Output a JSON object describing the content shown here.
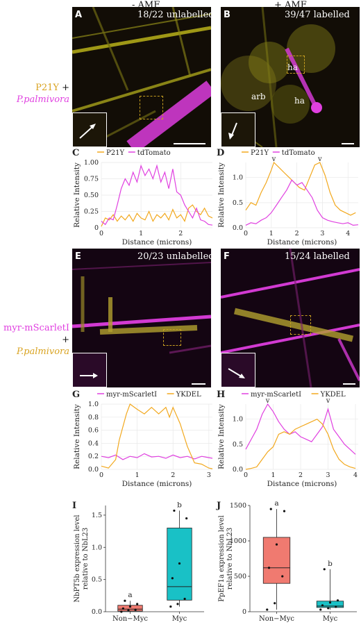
{
  "columns": {
    "minus": "- AMF",
    "plus": "+ AMF"
  },
  "row_labels": {
    "top": {
      "marker": "P21Y",
      "plus": "+",
      "pathogen": "P.palmivora"
    },
    "bottom": {
      "marker": "myr-mScarletI",
      "plus": "+",
      "pathogen": "P.palmivora"
    }
  },
  "panels": {
    "A": {
      "letter": "A",
      "count": "18/22 unlabelled"
    },
    "B": {
      "letter": "B",
      "count": "39/47 labelled",
      "labels": [
        "ha",
        "ha",
        "arb"
      ]
    },
    "C": {
      "letter": "C"
    },
    "D": {
      "letter": "D"
    },
    "E": {
      "letter": "E",
      "count": "20/23 unlabelled"
    },
    "F": {
      "letter": "F",
      "count": "15/24 labelled"
    },
    "G": {
      "letter": "G"
    },
    "H": {
      "letter": "H"
    },
    "I": {
      "letter": "I"
    },
    "J": {
      "letter": "J"
    }
  },
  "colors": {
    "yellow": "#f2a81d",
    "magenta": "#e040e0",
    "salmon": "#f07a70",
    "teal": "#19c1c6"
  },
  "chart_data": [
    {
      "id": "C",
      "type": "line",
      "legend": [
        "P21Y",
        "tdTomato"
      ],
      "xlabel": "Distance (microns)",
      "ylabel": "Relative Intensity",
      "xlim": [
        0,
        2.8
      ],
      "ylim": [
        0,
        1.0
      ],
      "xticks": [
        "0",
        "1",
        "2"
      ],
      "yticks": [
        "0",
        "0.25",
        "0.50",
        "0.75",
        "1.00"
      ],
      "series": [
        {
          "name": "P21Y",
          "color": "#f2a81d",
          "x": [
            0,
            0.1,
            0.2,
            0.3,
            0.4,
            0.5,
            0.6,
            0.7,
            0.8,
            0.9,
            1.0,
            1.1,
            1.2,
            1.3,
            1.4,
            1.5,
            1.6,
            1.7,
            1.8,
            1.9,
            2.0,
            2.1,
            2.2,
            2.3,
            2.4,
            2.5,
            2.6,
            2.7,
            2.8
          ],
          "y": [
            0.02,
            0.15,
            0.12,
            0.2,
            0.1,
            0.18,
            0.12,
            0.2,
            0.1,
            0.22,
            0.15,
            0.12,
            0.25,
            0.1,
            0.2,
            0.15,
            0.22,
            0.12,
            0.28,
            0.15,
            0.2,
            0.1,
            0.3,
            0.35,
            0.25,
            0.2,
            0.3,
            0.18,
            0.15
          ]
        },
        {
          "name": "tdTomato",
          "color": "#e040e0",
          "x": [
            0,
            0.1,
            0.2,
            0.3,
            0.4,
            0.5,
            0.6,
            0.7,
            0.8,
            0.9,
            1.0,
            1.1,
            1.2,
            1.3,
            1.4,
            1.5,
            1.6,
            1.7,
            1.8,
            1.9,
            2.0,
            2.1,
            2.2,
            2.3,
            2.4,
            2.5,
            2.6,
            2.7,
            2.8
          ],
          "y": [
            0.1,
            0.05,
            0.15,
            0.12,
            0.35,
            0.6,
            0.75,
            0.65,
            0.85,
            0.7,
            0.95,
            0.8,
            0.9,
            0.75,
            0.95,
            0.7,
            0.85,
            0.6,
            0.9,
            0.55,
            0.5,
            0.35,
            0.25,
            0.15,
            0.3,
            0.12,
            0.1,
            0.05,
            0.04
          ]
        }
      ]
    },
    {
      "id": "D",
      "type": "line",
      "legend": [
        "P21Y",
        "tdTomato"
      ],
      "xlabel": "Distance (microns)",
      "ylabel": "Relative Intensity",
      "xlim": [
        0,
        4.4
      ],
      "ylim": [
        0,
        1.3
      ],
      "xticks": [
        "0",
        "1",
        "2",
        "3",
        "4"
      ],
      "yticks": [
        "0.0",
        "0.5",
        "1.0"
      ],
      "markers": [
        {
          "x": 1.1,
          "text": "v"
        },
        {
          "x": 2.9,
          "text": "v"
        }
      ],
      "series": [
        {
          "name": "P21Y",
          "color": "#f2a81d",
          "x": [
            0,
            0.2,
            0.4,
            0.6,
            0.8,
            1.0,
            1.1,
            1.3,
            1.5,
            1.7,
            1.9,
            2.1,
            2.3,
            2.5,
            2.7,
            2.9,
            3.1,
            3.3,
            3.5,
            3.7,
            3.9,
            4.1,
            4.3
          ],
          "y": [
            0.35,
            0.5,
            0.45,
            0.7,
            0.9,
            1.15,
            1.3,
            1.2,
            1.1,
            1.0,
            0.9,
            0.8,
            0.75,
            1.0,
            1.25,
            1.3,
            1.05,
            0.7,
            0.45,
            0.35,
            0.3,
            0.25,
            0.3
          ]
        },
        {
          "name": "tdTomato",
          "color": "#e040e0",
          "x": [
            0,
            0.2,
            0.4,
            0.6,
            0.8,
            1.0,
            1.2,
            1.4,
            1.6,
            1.8,
            2.0,
            2.2,
            2.4,
            2.6,
            2.8,
            3.0,
            3.2,
            3.4,
            3.6,
            3.8,
            4.0,
            4.2,
            4.4
          ],
          "y": [
            0.05,
            0.1,
            0.08,
            0.15,
            0.2,
            0.3,
            0.45,
            0.6,
            0.75,
            0.95,
            0.85,
            0.9,
            0.75,
            0.6,
            0.35,
            0.2,
            0.15,
            0.12,
            0.1,
            0.08,
            0.1,
            0.05,
            0.06
          ]
        }
      ]
    },
    {
      "id": "G",
      "type": "line",
      "legend": [
        "myr-mScarletI",
        "YKDEL"
      ],
      "xlabel": "Distance (microns)",
      "ylabel": "Relative Intensity",
      "xlim": [
        0,
        3.1
      ],
      "ylim": [
        0,
        1.0
      ],
      "xticks": [
        "0",
        "1",
        "2",
        "3"
      ],
      "yticks": [
        "0.0",
        "0.2",
        "0.4",
        "0.6",
        "0.8",
        "1.0"
      ],
      "series": [
        {
          "name": "myr-mScarletI",
          "color": "#e040e0",
          "x": [
            0,
            0.2,
            0.4,
            0.6,
            0.8,
            1.0,
            1.2,
            1.4,
            1.6,
            1.8,
            2.0,
            2.2,
            2.4,
            2.6,
            2.8,
            3.0,
            3.1
          ],
          "y": [
            0.2,
            0.18,
            0.22,
            0.15,
            0.2,
            0.18,
            0.24,
            0.19,
            0.2,
            0.17,
            0.22,
            0.18,
            0.2,
            0.16,
            0.2,
            0.18,
            0.17
          ]
        },
        {
          "name": "YKDEL",
          "color": "#f2a81d",
          "x": [
            0,
            0.2,
            0.4,
            0.5,
            0.7,
            0.8,
            1.0,
            1.2,
            1.4,
            1.6,
            1.8,
            1.9,
            2.0,
            2.2,
            2.4,
            2.6,
            2.8,
            3.0,
            3.1
          ],
          "y": [
            0.05,
            0.02,
            0.15,
            0.45,
            0.85,
            1.0,
            0.92,
            0.85,
            0.95,
            0.85,
            0.95,
            0.8,
            0.95,
            0.7,
            0.35,
            0.1,
            0.08,
            0.02,
            0.01
          ]
        }
      ]
    },
    {
      "id": "H",
      "type": "line",
      "legend": [
        "myr-mScarletI",
        "YKDEL"
      ],
      "xlabel": "Distance (microns)",
      "ylabel": "Relative Intensity",
      "xlim": [
        0,
        4.1
      ],
      "ylim": [
        0,
        1.3
      ],
      "xticks": [
        "0",
        "1",
        "2",
        "3",
        "4"
      ],
      "yticks": [
        "0.0",
        "0.5",
        "1.0"
      ],
      "markers": [
        {
          "x": 0.8,
          "text": "v"
        },
        {
          "x": 3.0,
          "text": "v"
        }
      ],
      "series": [
        {
          "name": "myr-mScarletI",
          "color": "#e040e0",
          "x": [
            0,
            0.2,
            0.4,
            0.6,
            0.8,
            1.0,
            1.2,
            1.4,
            1.6,
            1.8,
            2.0,
            2.2,
            2.4,
            2.6,
            2.8,
            3.0,
            3.2,
            3.4,
            3.6,
            3.8,
            4.0
          ],
          "y": [
            0.4,
            0.6,
            0.8,
            1.1,
            1.3,
            1.15,
            0.95,
            0.8,
            0.7,
            0.75,
            0.65,
            0.6,
            0.55,
            0.7,
            0.85,
            1.2,
            0.8,
            0.65,
            0.5,
            0.4,
            0.3
          ]
        },
        {
          "name": "YKDEL",
          "color": "#f2a81d",
          "x": [
            0,
            0.2,
            0.4,
            0.6,
            0.8,
            1.0,
            1.2,
            1.4,
            1.6,
            1.8,
            2.0,
            2.2,
            2.4,
            2.6,
            2.8,
            3.0,
            3.2,
            3.4,
            3.6,
            3.8,
            4.0
          ],
          "y": [
            0.0,
            0.02,
            0.05,
            0.2,
            0.35,
            0.45,
            0.7,
            0.75,
            0.7,
            0.8,
            0.85,
            0.9,
            0.95,
            1.0,
            0.9,
            0.7,
            0.4,
            0.2,
            0.1,
            0.05,
            0.02
          ]
        }
      ]
    },
    {
      "id": "I",
      "type": "box",
      "ylabel": "NbPT5b expression level relative to NbL23",
      "categories": [
        "Non−Myc",
        "Myc"
      ],
      "ylim": [
        0,
        1.65
      ],
      "yticks": [
        "0.0",
        "0.5",
        "1.0",
        "1.5"
      ],
      "boxes": [
        {
          "q1": 0.01,
          "median": 0.04,
          "q3": 0.1,
          "min": 0.0,
          "max": 0.17,
          "color": "#f07a70",
          "letter": "a",
          "points": [
            0.0,
            0.02,
            0.03,
            0.05,
            0.08,
            0.12,
            0.17
          ]
        },
        {
          "q1": 0.18,
          "median": 0.39,
          "q3": 1.3,
          "min": 0.08,
          "max": 1.57,
          "color": "#19c1c6",
          "letter": "b",
          "points": [
            0.08,
            0.12,
            0.2,
            0.52,
            0.75,
            1.45,
            1.57
          ]
        }
      ]
    },
    {
      "id": "J",
      "type": "box",
      "ylabel": "PpEF1a expression level relative to NbL23",
      "categories": [
        "Non−Myc",
        "Myc"
      ],
      "ylim": [
        0,
        1500
      ],
      "yticks": [
        "0",
        "500",
        "1000",
        "1500"
      ],
      "boxes": [
        {
          "q1": 400,
          "median": 620,
          "q3": 1050,
          "min": 30,
          "max": 1450,
          "color": "#f07a70",
          "letter": "a",
          "points": [
            30,
            120,
            500,
            620,
            950,
            1420,
            1450
          ]
        },
        {
          "q1": 60,
          "median": 80,
          "q3": 150,
          "min": 30,
          "max": 600,
          "color": "#19c1c6",
          "letter": "b",
          "points": [
            30,
            50,
            70,
            90,
            130,
            160,
            600
          ]
        }
      ]
    }
  ]
}
